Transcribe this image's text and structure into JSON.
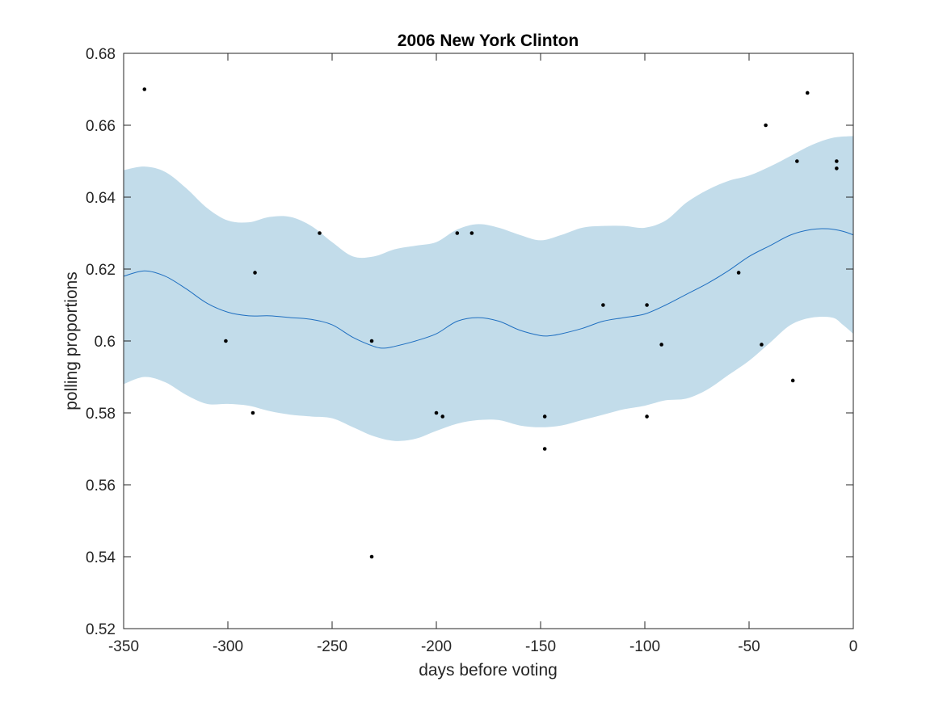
{
  "chart_data": {
    "type": "scatter",
    "title": "2006 New York Clinton",
    "xlabel": "days before voting",
    "ylabel": "polling proportions",
    "xlim": [
      -350,
      0
    ],
    "ylim": [
      0.52,
      0.68
    ],
    "xticks": [
      -350,
      -300,
      -250,
      -200,
      -150,
      -100,
      -50,
      0
    ],
    "xtick_labels": [
      "-350",
      "-300",
      "-250",
      "-200",
      "-150",
      "-100",
      "-50",
      "0"
    ],
    "yticks": [
      0.52,
      0.54,
      0.56,
      0.58,
      0.6,
      0.62,
      0.64,
      0.66,
      0.68
    ],
    "ytick_labels": [
      "0.52",
      "0.54",
      "0.56",
      "0.58",
      "0.6",
      "0.62",
      "0.64",
      "0.66",
      "0.68"
    ],
    "grid": false,
    "colors": {
      "band": "#c2dcea",
      "mean_line": "#1f6fc0",
      "points": "#000000",
      "axes": "#262626"
    },
    "points": [
      {
        "x": -340,
        "y": 0.67
      },
      {
        "x": -301,
        "y": 0.6
      },
      {
        "x": -287,
        "y": 0.619
      },
      {
        "x": -288,
        "y": 0.58
      },
      {
        "x": -256,
        "y": 0.63
      },
      {
        "x": -231,
        "y": 0.6
      },
      {
        "x": -231,
        "y": 0.54
      },
      {
        "x": -200,
        "y": 0.58
      },
      {
        "x": -197,
        "y": 0.579
      },
      {
        "x": -190,
        "y": 0.63
      },
      {
        "x": -183,
        "y": 0.63
      },
      {
        "x": -148,
        "y": 0.579
      },
      {
        "x": -148,
        "y": 0.57
      },
      {
        "x": -120,
        "y": 0.61
      },
      {
        "x": -99,
        "y": 0.61
      },
      {
        "x": -99,
        "y": 0.579
      },
      {
        "x": -92,
        "y": 0.599
      },
      {
        "x": -55,
        "y": 0.619
      },
      {
        "x": -44,
        "y": 0.599
      },
      {
        "x": -42,
        "y": 0.66
      },
      {
        "x": -29,
        "y": 0.589
      },
      {
        "x": -27,
        "y": 0.65
      },
      {
        "x": -22,
        "y": 0.669
      },
      {
        "x": -8,
        "y": 0.65
      },
      {
        "x": -8,
        "y": 0.648
      }
    ],
    "mean_curve": {
      "x": [
        -350,
        -340,
        -330,
        -320,
        -310,
        -300,
        -290,
        -280,
        -270,
        -260,
        -250,
        -240,
        -230,
        -225,
        -220,
        -210,
        -200,
        -190,
        -180,
        -170,
        -160,
        -150,
        -145,
        -140,
        -130,
        -120,
        -110,
        -100,
        -90,
        -80,
        -70,
        -60,
        -50,
        -40,
        -30,
        -20,
        -12,
        -5,
        0
      ],
      "y": [
        0.618,
        0.6195,
        0.618,
        0.6145,
        0.6105,
        0.608,
        0.607,
        0.607,
        0.6065,
        0.606,
        0.6045,
        0.601,
        0.5985,
        0.598,
        0.5985,
        0.6,
        0.602,
        0.6055,
        0.6065,
        0.6055,
        0.603,
        0.6015,
        0.6015,
        0.602,
        0.6035,
        0.6055,
        0.6065,
        0.6075,
        0.61,
        0.613,
        0.616,
        0.6195,
        0.6235,
        0.6265,
        0.6295,
        0.631,
        0.6312,
        0.6305,
        0.6295
      ]
    },
    "band_upper": {
      "x": [
        -350,
        -340,
        -330,
        -320,
        -310,
        -300,
        -290,
        -280,
        -270,
        -260,
        -250,
        -240,
        -230,
        -220,
        -210,
        -200,
        -190,
        -180,
        -170,
        -160,
        -150,
        -140,
        -130,
        -120,
        -110,
        -100,
        -90,
        -80,
        -70,
        -60,
        -50,
        -40,
        -30,
        -20,
        -10,
        0
      ],
      "y": [
        0.6475,
        0.6485,
        0.647,
        0.6425,
        0.637,
        0.6335,
        0.633,
        0.6345,
        0.6345,
        0.632,
        0.6275,
        0.6235,
        0.6235,
        0.6255,
        0.6265,
        0.6275,
        0.631,
        0.6325,
        0.6315,
        0.6295,
        0.628,
        0.6295,
        0.6315,
        0.632,
        0.632,
        0.6315,
        0.6335,
        0.6385,
        0.642,
        0.6445,
        0.646,
        0.6485,
        0.6515,
        0.6545,
        0.6565,
        0.657
      ]
    },
    "band_lower": {
      "x": [
        -350,
        -340,
        -330,
        -320,
        -310,
        -300,
        -290,
        -280,
        -270,
        -260,
        -250,
        -240,
        -230,
        -220,
        -210,
        -200,
        -190,
        -180,
        -170,
        -160,
        -150,
        -140,
        -130,
        -120,
        -110,
        -100,
        -90,
        -80,
        -70,
        -60,
        -50,
        -40,
        -30,
        -20,
        -10,
        -5,
        0
      ],
      "y": [
        0.588,
        0.59,
        0.5885,
        0.585,
        0.5825,
        0.5825,
        0.582,
        0.5805,
        0.5795,
        0.579,
        0.5785,
        0.576,
        0.5735,
        0.5722,
        0.5728,
        0.575,
        0.577,
        0.578,
        0.578,
        0.5765,
        0.576,
        0.5765,
        0.578,
        0.5795,
        0.581,
        0.582,
        0.5835,
        0.584,
        0.5865,
        0.5905,
        0.5945,
        0.5995,
        0.6045,
        0.6065,
        0.6065,
        0.6045,
        0.602
      ]
    }
  }
}
